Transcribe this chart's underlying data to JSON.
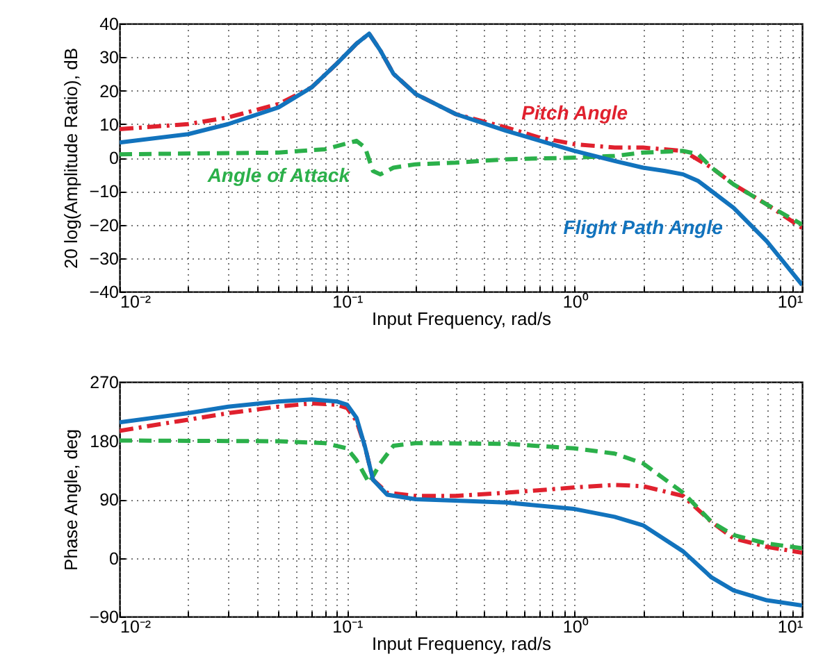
{
  "chart_data": [
    {
      "type": "line",
      "xlabel": "Input Frequency, rad/s",
      "ylabel": "20 log(Amplitude Ratio), dB",
      "log": "x",
      "grid": true,
      "xlim": [
        0.01,
        10
      ],
      "xticks": [
        {
          "value": 0.01,
          "label": "10⁻²"
        },
        {
          "value": 0.02,
          "label": null
        },
        {
          "value": 0.03,
          "label": null
        },
        {
          "value": 0.04,
          "label": null
        },
        {
          "value": 0.05,
          "label": null
        },
        {
          "value": 0.06,
          "label": null
        },
        {
          "value": 0.07,
          "label": null
        },
        {
          "value": 0.08,
          "label": null
        },
        {
          "value": 0.09,
          "label": null
        },
        {
          "value": 0.1,
          "label": "10⁻¹"
        },
        {
          "value": 0.2,
          "label": null
        },
        {
          "value": 0.3,
          "label": null
        },
        {
          "value": 0.4,
          "label": null
        },
        {
          "value": 0.5,
          "label": null
        },
        {
          "value": 0.6,
          "label": null
        },
        {
          "value": 0.7,
          "label": null
        },
        {
          "value": 0.8,
          "label": null
        },
        {
          "value": 0.9,
          "label": null
        },
        {
          "value": 1,
          "label": "10⁰"
        },
        {
          "value": 2,
          "label": null
        },
        {
          "value": 3,
          "label": null
        },
        {
          "value": 4,
          "label": null
        },
        {
          "value": 5,
          "label": null
        },
        {
          "value": 6,
          "label": null
        },
        {
          "value": 7,
          "label": null
        },
        {
          "value": 8,
          "label": null
        },
        {
          "value": 9,
          "label": null
        },
        {
          "value": 10,
          "label": "10¹"
        }
      ],
      "ylim": [
        -40,
        40
      ],
      "yticks": [
        {
          "value": -40,
          "label": "−40"
        },
        {
          "value": -30,
          "label": "−30"
        },
        {
          "value": -20,
          "label": "−20"
        },
        {
          "value": -10,
          "label": "−10"
        },
        0,
        10,
        20,
        30,
        40
      ],
      "series": [
        {
          "color": "#e0212e",
          "line_style": "dashdot",
          "x": [
            0.01,
            0.02,
            0.03,
            0.05,
            0.07,
            0.09,
            0.11,
            0.125,
            0.14,
            0.16,
            0.2,
            0.3,
            0.5,
            0.7,
            1,
            1.5,
            2,
            3,
            4,
            5,
            7,
            10
          ],
          "values": [
            8.5,
            10,
            12,
            16,
            21,
            28,
            34,
            37,
            32,
            25,
            19,
            13,
            9,
            6,
            4,
            3,
            3,
            2,
            -3,
            -8,
            -14,
            -21
          ]
        },
        {
          "color": "#2bb04a",
          "line_style": "dashed",
          "x": [
            0.01,
            0.05,
            0.08,
            0.11,
            0.12,
            0.13,
            0.14,
            0.16,
            0.2,
            0.3,
            0.5,
            1,
            1.5,
            2,
            3,
            3.5,
            4,
            5,
            7,
            10
          ],
          "values": [
            1,
            1.5,
            2.5,
            5,
            3,
            -4,
            -5,
            -3,
            -2,
            -1.5,
            -0.5,
            0,
            0.5,
            1.5,
            2,
            1,
            -3,
            -8,
            -14,
            -20
          ]
        },
        {
          "color": "#1273bd",
          "line_style": "solid",
          "x": [
            0.01,
            0.02,
            0.03,
            0.05,
            0.07,
            0.09,
            0.11,
            0.125,
            0.14,
            0.16,
            0.2,
            0.3,
            0.5,
            1,
            1.5,
            2,
            2.5,
            3,
            3.5,
            4,
            5,
            7,
            10
          ],
          "values": [
            4.5,
            7,
            10,
            15,
            21,
            28,
            34,
            37,
            32,
            25,
            19,
            13,
            8,
            2,
            -1,
            -3,
            -4,
            -5,
            -7,
            -10,
            -15,
            -25,
            -38
          ]
        }
      ],
      "annotations": [
        {
          "text": "Pitch Angle",
          "x": 1,
          "y": 4
        },
        {
          "text": "Angle of Attack",
          "x": 0.05,
          "y": 1.5
        },
        {
          "text": "Flight Path Angle",
          "x": 2,
          "y": -3
        }
      ]
    },
    {
      "type": "line",
      "xlabel": "Input Frequency, rad/s",
      "ylabel": "Phase Angle, deg",
      "log": "x",
      "grid": true,
      "xlim": [
        0.01,
        10
      ],
      "xticks": [
        {
          "value": 0.01,
          "label": "10⁻²"
        },
        {
          "value": 0.02,
          "label": null
        },
        {
          "value": 0.03,
          "label": null
        },
        {
          "value": 0.04,
          "label": null
        },
        {
          "value": 0.05,
          "label": null
        },
        {
          "value": 0.06,
          "label": null
        },
        {
          "value": 0.07,
          "label": null
        },
        {
          "value": 0.08,
          "label": null
        },
        {
          "value": 0.09,
          "label": null
        },
        {
          "value": 0.1,
          "label": "10⁻¹"
        },
        {
          "value": 0.2,
          "label": null
        },
        {
          "value": 0.3,
          "label": null
        },
        {
          "value": 0.4,
          "label": null
        },
        {
          "value": 0.5,
          "label": null
        },
        {
          "value": 0.6,
          "label": null
        },
        {
          "value": 0.7,
          "label": null
        },
        {
          "value": 0.8,
          "label": null
        },
        {
          "value": 0.9,
          "label": null
        },
        {
          "value": 1,
          "label": "10⁰"
        },
        {
          "value": 2,
          "label": null
        },
        {
          "value": 3,
          "label": null
        },
        {
          "value": 4,
          "label": null
        },
        {
          "value": 5,
          "label": null
        },
        {
          "value": 6,
          "label": null
        },
        {
          "value": 7,
          "label": null
        },
        {
          "value": 8,
          "label": null
        },
        {
          "value": 9,
          "label": null
        },
        {
          "value": 10,
          "label": "10¹"
        }
      ],
      "ylim": [
        -90,
        270
      ],
      "yticks": [
        {
          "value": -90,
          "label": "−90"
        },
        0,
        90,
        180,
        270
      ],
      "series": [
        {
          "color": "#e0212e",
          "line_style": "dashdot",
          "x": [
            0.01,
            0.02,
            0.03,
            0.05,
            0.07,
            0.09,
            0.1,
            0.11,
            0.12,
            0.13,
            0.15,
            0.2,
            0.3,
            0.5,
            1,
            1.5,
            2,
            3,
            4,
            5,
            7,
            10
          ],
          "values": [
            195,
            212,
            222,
            232,
            237,
            235,
            230,
            210,
            170,
            120,
            100,
            95,
            95,
            100,
            108,
            112,
            110,
            95,
            55,
            30,
            17,
            8
          ]
        },
        {
          "color": "#2bb04a",
          "line_style": "dashed",
          "x": [
            0.01,
            0.05,
            0.08,
            0.1,
            0.11,
            0.125,
            0.14,
            0.16,
            0.2,
            0.5,
            1,
            1.5,
            2,
            3,
            4,
            5,
            7,
            10
          ],
          "values": [
            180,
            179,
            176,
            168,
            150,
            115,
            145,
            172,
            176,
            175,
            168,
            160,
            145,
            100,
            55,
            35,
            22,
            15
          ]
        },
        {
          "color": "#1273bd",
          "line_style": "solid",
          "x": [
            0.01,
            0.02,
            0.03,
            0.05,
            0.07,
            0.09,
            0.1,
            0.11,
            0.12,
            0.13,
            0.15,
            0.2,
            0.3,
            0.5,
            1,
            1.5,
            2,
            3,
            4,
            5,
            7,
            10
          ],
          "values": [
            208,
            222,
            232,
            240,
            243,
            240,
            235,
            215,
            170,
            120,
            97,
            90,
            88,
            85,
            75,
            63,
            50,
            10,
            -30,
            -50,
            -65,
            -73
          ]
        }
      ]
    }
  ]
}
